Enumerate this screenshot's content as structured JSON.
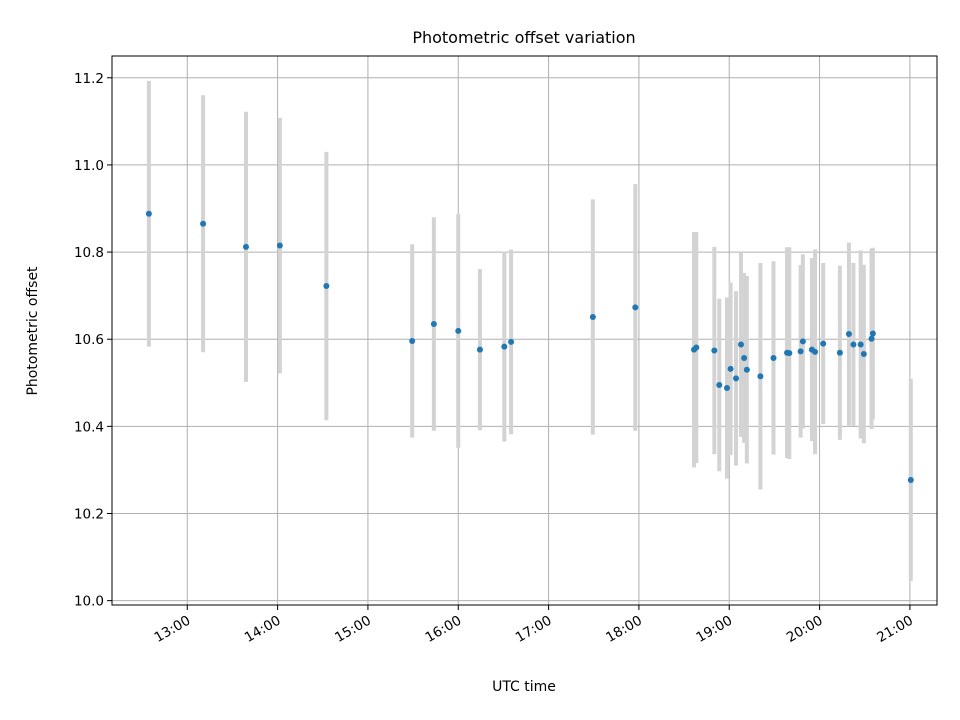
{
  "chart_data": {
    "type": "scatter",
    "title": "Photometric offset variation",
    "xlabel": "UTC time",
    "ylabel": "Photometric offset",
    "x_unit": "hours UTC",
    "xlim": [
      12.1667,
      21.3
    ],
    "ylim": [
      9.99,
      11.25
    ],
    "x_ticks": [
      {
        "value": 13,
        "label": "13:00"
      },
      {
        "value": 14,
        "label": "14:00"
      },
      {
        "value": 15,
        "label": "15:00"
      },
      {
        "value": 16,
        "label": "16:00"
      },
      {
        "value": 17,
        "label": "17:00"
      },
      {
        "value": 18,
        "label": "18:00"
      },
      {
        "value": 19,
        "label": "19:00"
      },
      {
        "value": 20,
        "label": "20:00"
      },
      {
        "value": 21,
        "label": "21:00"
      }
    ],
    "y_ticks": [
      {
        "value": 10.0,
        "label": "10.0"
      },
      {
        "value": 10.2,
        "label": "10.2"
      },
      {
        "value": 10.4,
        "label": "10.4"
      },
      {
        "value": 10.6,
        "label": "10.6"
      },
      {
        "value": 10.8,
        "label": "10.8"
      },
      {
        "value": 11.0,
        "label": "11.0"
      },
      {
        "value": 11.2,
        "label": "11.2"
      }
    ],
    "grid": true,
    "marker_color": "#1f77b4",
    "errorbar_color": "#d3d3d3",
    "points": [
      {
        "x": 12.575,
        "y": 10.888,
        "err": 0.305
      },
      {
        "x": 13.175,
        "y": 10.865,
        "err": 0.295
      },
      {
        "x": 13.65,
        "y": 10.812,
        "err": 0.31
      },
      {
        "x": 14.025,
        "y": 10.815,
        "err": 0.293
      },
      {
        "x": 14.54,
        "y": 10.722,
        "err": 0.308
      },
      {
        "x": 15.49,
        "y": 10.596,
        "err": 0.222
      },
      {
        "x": 15.73,
        "y": 10.635,
        "err": 0.245
      },
      {
        "x": 16.0,
        "y": 10.619,
        "err": 0.268
      },
      {
        "x": 16.24,
        "y": 10.576,
        "err": 0.185
      },
      {
        "x": 16.51,
        "y": 10.583,
        "err": 0.218
      },
      {
        "x": 16.585,
        "y": 10.594,
        "err": 0.212
      },
      {
        "x": 17.49,
        "y": 10.651,
        "err": 0.27
      },
      {
        "x": 17.96,
        "y": 10.673,
        "err": 0.283
      },
      {
        "x": 18.61,
        "y": 10.576,
        "err": 0.27
      },
      {
        "x": 18.635,
        "y": 10.581,
        "err": 0.265
      },
      {
        "x": 18.835,
        "y": 10.574,
        "err": 0.238
      },
      {
        "x": 18.89,
        "y": 10.495,
        "err": 0.198
      },
      {
        "x": 18.975,
        "y": 10.488,
        "err": 0.208
      },
      {
        "x": 19.015,
        "y": 10.532,
        "err": 0.198
      },
      {
        "x": 19.075,
        "y": 10.51,
        "err": 0.2
      },
      {
        "x": 19.13,
        "y": 10.588,
        "err": 0.212
      },
      {
        "x": 19.165,
        "y": 10.557,
        "err": 0.195
      },
      {
        "x": 19.195,
        "y": 10.53,
        "err": 0.215
      },
      {
        "x": 19.345,
        "y": 10.515,
        "err": 0.26
      },
      {
        "x": 19.49,
        "y": 10.557,
        "err": 0.222
      },
      {
        "x": 19.64,
        "y": 10.569,
        "err": 0.242
      },
      {
        "x": 19.665,
        "y": 10.568,
        "err": 0.243
      },
      {
        "x": 19.79,
        "y": 10.572,
        "err": 0.198
      },
      {
        "x": 19.815,
        "y": 10.595,
        "err": 0.2
      },
      {
        "x": 19.915,
        "y": 10.576,
        "err": 0.21
      },
      {
        "x": 19.95,
        "y": 10.571,
        "err": 0.235
      },
      {
        "x": 20.04,
        "y": 10.59,
        "err": 0.185
      },
      {
        "x": 20.225,
        "y": 10.569,
        "err": 0.2
      },
      {
        "x": 20.325,
        "y": 10.612,
        "err": 0.21
      },
      {
        "x": 20.375,
        "y": 10.588,
        "err": 0.187
      },
      {
        "x": 20.455,
        "y": 10.588,
        "err": 0.216
      },
      {
        "x": 20.49,
        "y": 10.566,
        "err": 0.205
      },
      {
        "x": 20.575,
        "y": 10.601,
        "err": 0.207
      },
      {
        "x": 20.59,
        "y": 10.613,
        "err": 0.197
      },
      {
        "x": 21.01,
        "y": 10.277,
        "err": 0.232
      }
    ]
  }
}
